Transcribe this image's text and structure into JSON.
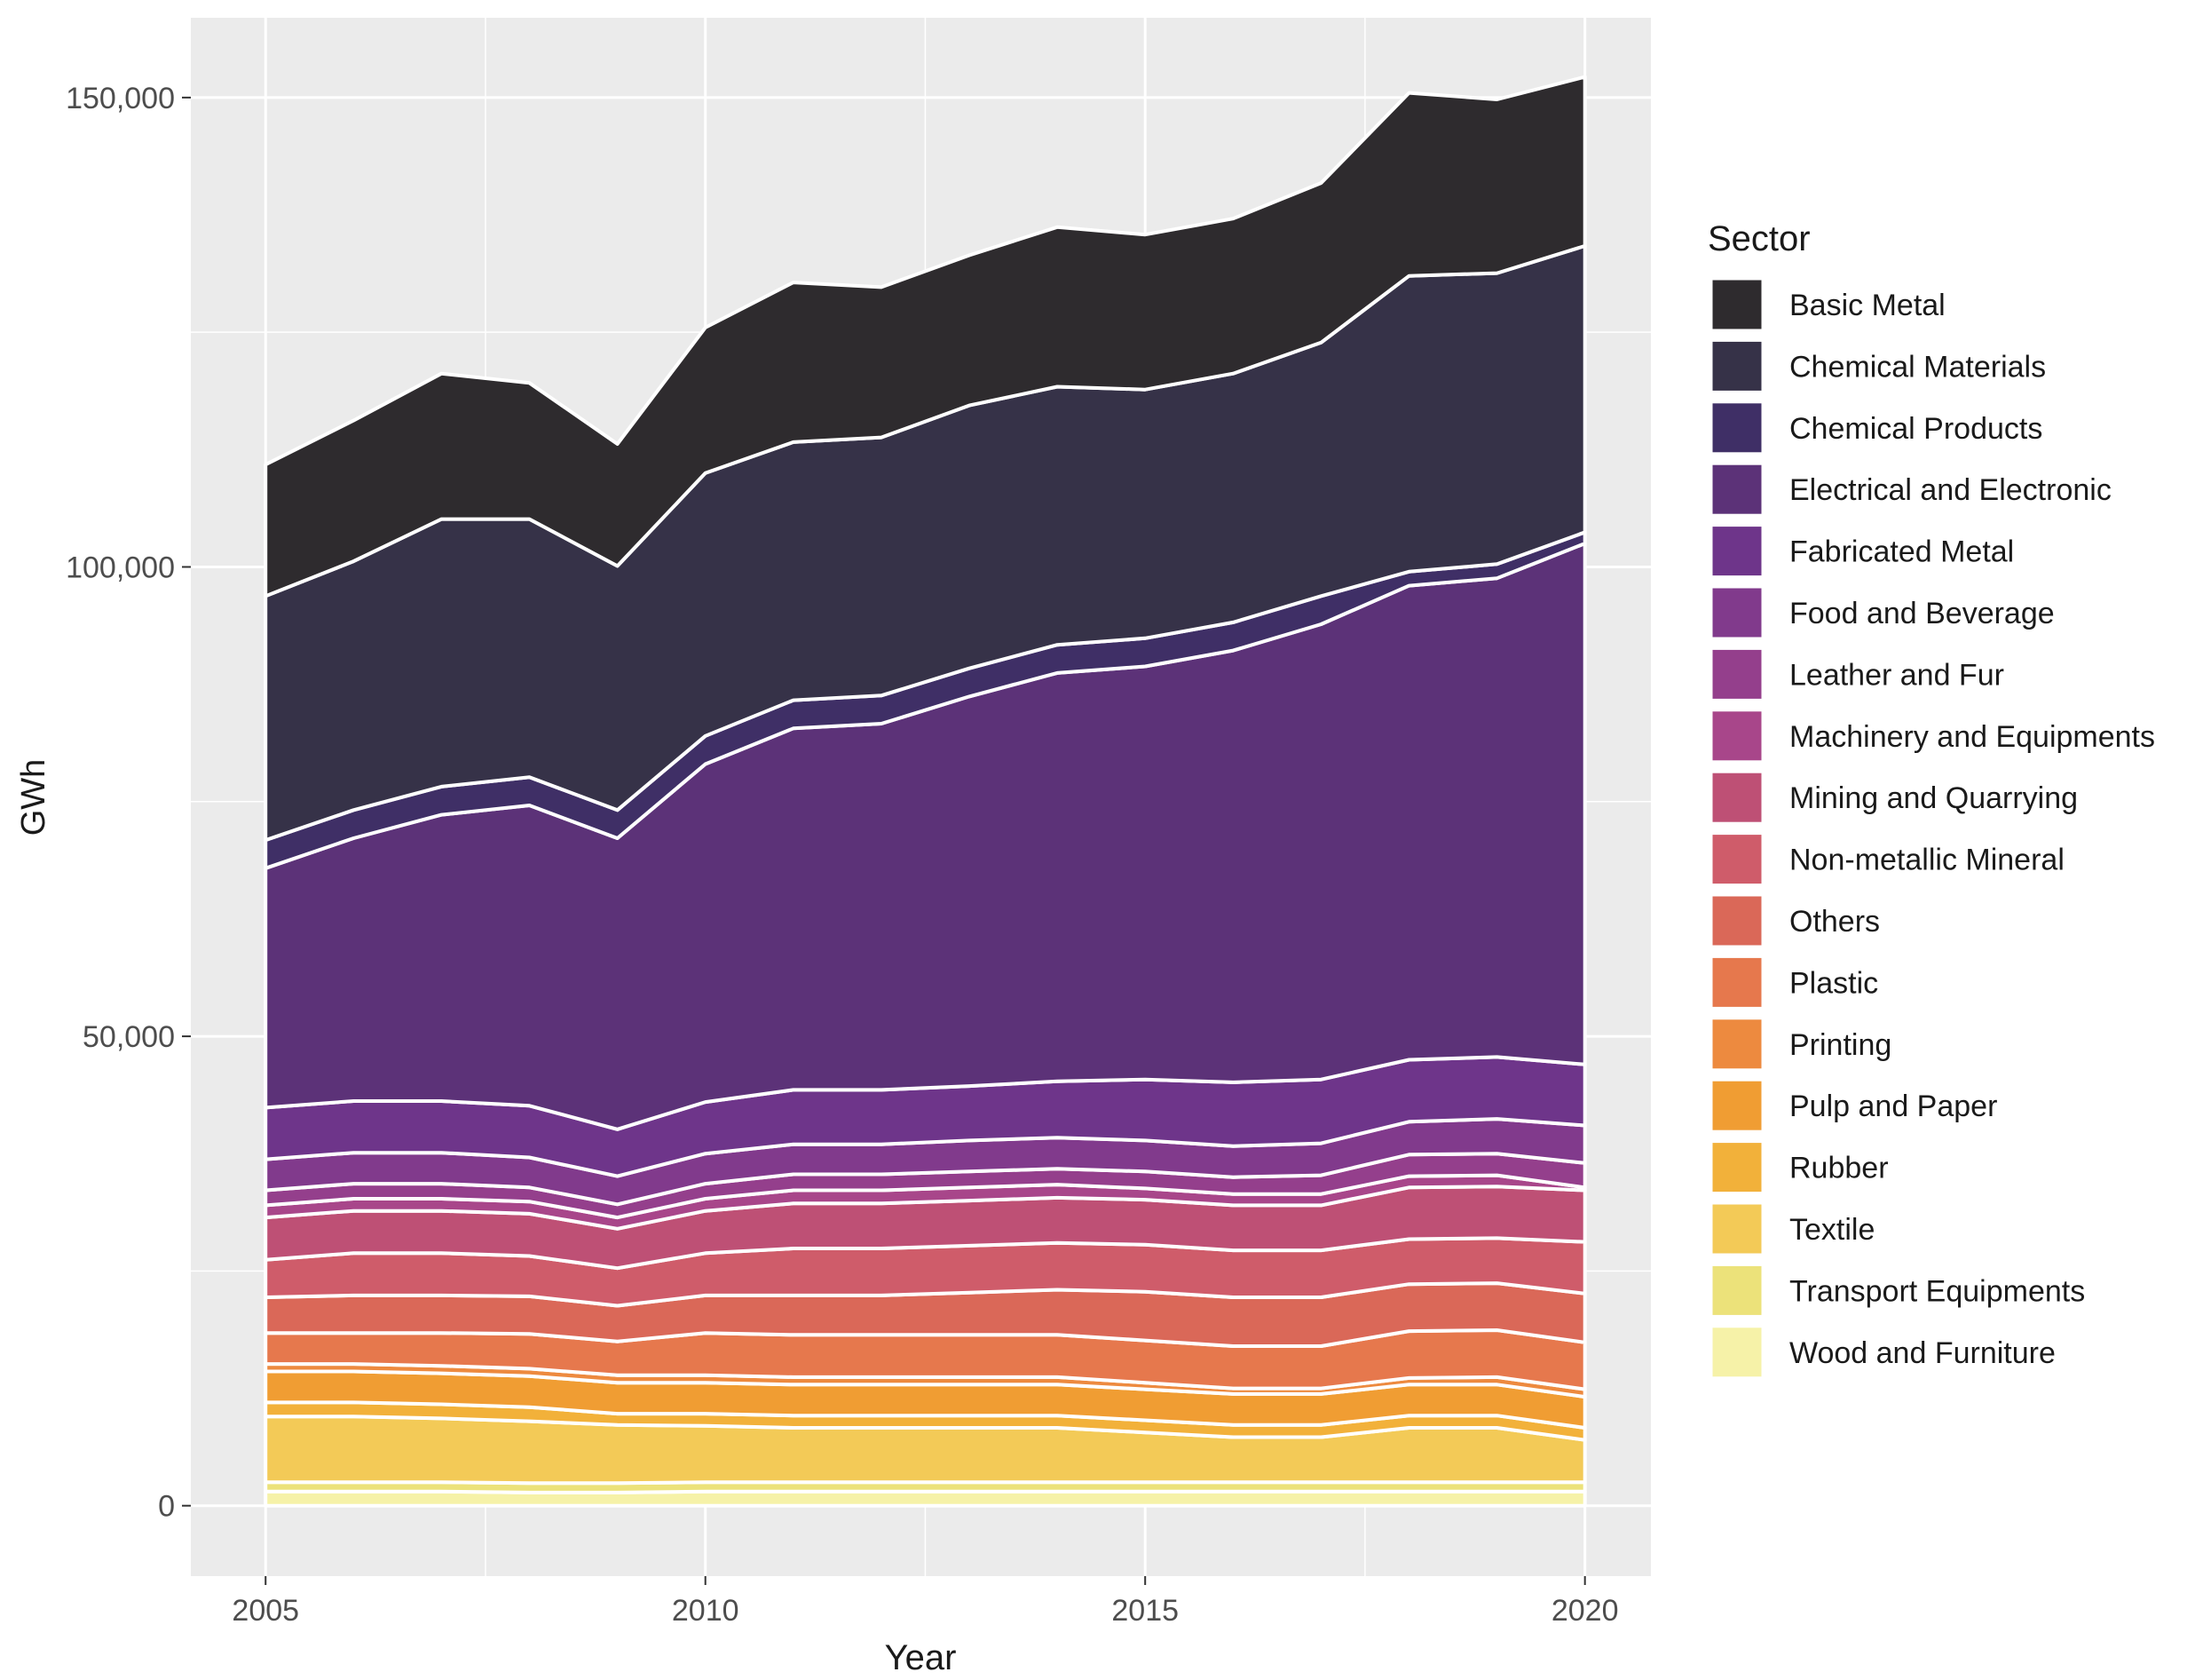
{
  "chart_data": {
    "type": "area",
    "stacked": true,
    "xlabel": "Year",
    "ylabel": "GWh",
    "xlim": [
      2004.15,
      2020.75
    ],
    "ylim": [
      -7500,
      158500
    ],
    "x_ticks": [
      2005,
      2010,
      2015,
      2020
    ],
    "x_tick_labels": [
      "2005",
      "2010",
      "2015",
      "2020"
    ],
    "y_ticks": [
      0,
      50000,
      100000,
      150000
    ],
    "y_tick_labels": [
      "0",
      "50,000",
      "100,000",
      "150,000"
    ],
    "grid": true,
    "legend": {
      "title": "Sector",
      "position": "right"
    },
    "x": [
      2005,
      2006,
      2007,
      2008,
      2009,
      2010,
      2011,
      2012,
      2013,
      2014,
      2015,
      2016,
      2017,
      2018,
      2019,
      2020
    ],
    "series": [
      {
        "name": "Basic Metal",
        "color": "#2e2b2e",
        "values": [
          14000,
          15000,
          15500,
          14500,
          13000,
          15500,
          17000,
          16000,
          16000,
          17000,
          16500,
          16500,
          17000,
          19500,
          18500,
          18000
        ]
      },
      {
        "name": "Chemical Materials",
        "color": "#363248",
        "values": [
          26000,
          26500,
          28500,
          27500,
          26000,
          28000,
          27500,
          27500,
          28000,
          27500,
          26500,
          26500,
          27000,
          31500,
          31000,
          30500
        ]
      },
      {
        "name": "Chemical Products",
        "color": "#3f2f66",
        "values": [
          3000,
          3000,
          3000,
          3000,
          3000,
          3000,
          3000,
          3000,
          3000,
          3000,
          3000,
          3000,
          3000,
          1500,
          1500,
          1200
        ]
      },
      {
        "name": "Electrical and Electronic",
        "color": "#5c3278",
        "values": [
          25500,
          28000,
          30500,
          32000,
          31000,
          36000,
          38500,
          39000,
          41500,
          43500,
          44000,
          46000,
          48500,
          50500,
          51000,
          55500
        ]
      },
      {
        "name": "Fabricated Metal",
        "color": "#6e358a",
        "values": [
          5500,
          5500,
          5500,
          5500,
          5000,
          5500,
          5800,
          5800,
          5800,
          6000,
          6500,
          6800,
          6800,
          6600,
          6600,
          6500
        ]
      },
      {
        "name": "Food and Beverage",
        "color": "#813a8c",
        "values": [
          3300,
          3300,
          3300,
          3200,
          3000,
          3200,
          3200,
          3200,
          3300,
          3300,
          3300,
          3300,
          3400,
          3500,
          3700,
          4000
        ]
      },
      {
        "name": "Leather and Fur",
        "color": "#943f8c",
        "values": [
          1600,
          1600,
          1600,
          1500,
          1400,
          1600,
          1700,
          1700,
          1700,
          1700,
          1800,
          1800,
          2000,
          2300,
          2300,
          2600
        ]
      },
      {
        "name": "Machinery and Equipments",
        "color": "#a8468a",
        "values": [
          1300,
          1300,
          1300,
          1300,
          1200,
          1300,
          1400,
          1400,
          1400,
          1400,
          1200,
          1200,
          1200,
          1200,
          1200,
          300
        ]
      },
      {
        "name": "Mining and Quarrying",
        "color": "#be5075",
        "values": [
          4500,
          4500,
          4500,
          4500,
          4200,
          4500,
          4800,
          4800,
          4800,
          4800,
          4800,
          4800,
          4800,
          5500,
          5500,
          5500
        ]
      },
      {
        "name": "Non-metallic Mineral",
        "color": "#cf5c6a",
        "values": [
          4000,
          4500,
          4500,
          4300,
          4000,
          4500,
          5000,
          5000,
          5000,
          5000,
          5000,
          5000,
          5000,
          4800,
          4800,
          5500
        ]
      },
      {
        "name": "Others",
        "color": "#da6858",
        "values": [
          3800,
          4000,
          4000,
          4000,
          3800,
          4000,
          4200,
          4200,
          4500,
          4800,
          5200,
          5200,
          5200,
          5000,
          5000,
          5200
        ]
      },
      {
        "name": "Plastic",
        "color": "#e6784d",
        "values": [
          3300,
          3300,
          3500,
          3700,
          3600,
          4500,
          4500,
          4500,
          4500,
          4500,
          4500,
          4500,
          4500,
          5000,
          5000,
          5000
        ]
      },
      {
        "name": "Printing",
        "color": "#ed8a3f",
        "values": [
          800,
          800,
          800,
          800,
          800,
          800,
          800,
          800,
          800,
          800,
          700,
          600,
          600,
          700,
          800,
          800
        ]
      },
      {
        "name": "Pulp and Paper",
        "color": "#f09d33",
        "values": [
          3300,
          3300,
          3300,
          3300,
          3300,
          3300,
          3300,
          3300,
          3300,
          3300,
          3300,
          3300,
          3300,
          3300,
          3300,
          3300
        ]
      },
      {
        "name": "Rubber",
        "color": "#f2b13a",
        "values": [
          1500,
          1500,
          1500,
          1500,
          1200,
          1300,
          1300,
          1300,
          1300,
          1300,
          1300,
          1300,
          1300,
          1300,
          1300,
          1300
        ]
      },
      {
        "name": "Textile",
        "color": "#f3ca57",
        "values": [
          7000,
          7000,
          6800,
          6600,
          6200,
          6000,
          5800,
          5800,
          5800,
          5800,
          5300,
          4800,
          4800,
          5800,
          5800,
          4500
        ]
      },
      {
        "name": "Transport Equipments",
        "color": "#ece27a",
        "values": [
          1000,
          1000,
          1000,
          1000,
          1000,
          1000,
          1000,
          1000,
          1000,
          1000,
          1000,
          1000,
          1000,
          1000,
          1000,
          1000
        ]
      },
      {
        "name": "Wood and Furniture",
        "color": "#f6f2a8",
        "values": [
          1500,
          1500,
          1500,
          1400,
          1400,
          1500,
          1500,
          1500,
          1500,
          1500,
          1500,
          1500,
          1500,
          1500,
          1500,
          1500
        ]
      }
    ]
  }
}
